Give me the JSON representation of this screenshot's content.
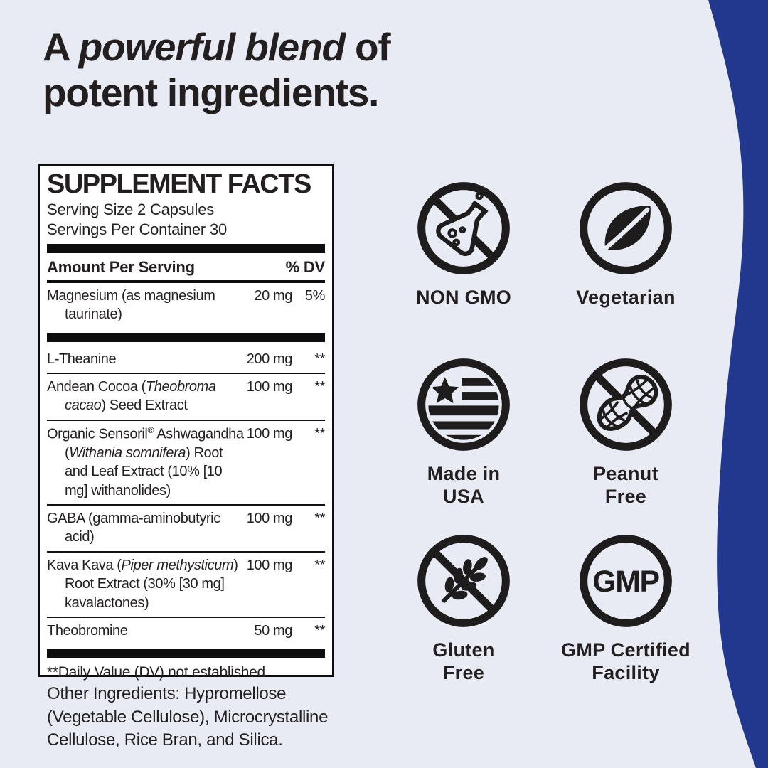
{
  "colors": {
    "background": "#e9ebf4",
    "accent_blue": "#21388e",
    "ink": "#231f20",
    "panel_bg": "#ffffff"
  },
  "headline": {
    "line1_prefix": "A ",
    "line1_emphasis": "powerful blend",
    "line1_suffix": " of",
    "line2": "potent ingredients."
  },
  "supplement_facts": {
    "title": "SUPPLEMENT FACTS",
    "serving_size": "Serving Size 2 Capsules",
    "servings_per_container": "Servings Per Container 30",
    "column_headers": {
      "amount": "Amount Per Serving",
      "dv": "% DV"
    },
    "rows": [
      {
        "name": [
          {
            "t": "Magnesium (as magnesium taurinate)"
          }
        ],
        "amount": "20 mg",
        "dv": "5%",
        "thick_after": true
      },
      {
        "name": [
          {
            "t": "L-Theanine"
          }
        ],
        "amount": "200 mg",
        "dv": "**"
      },
      {
        "name": [
          {
            "t": "Andean Cocoa ("
          },
          {
            "t": "Theobroma cacao",
            "i": true
          },
          {
            "t": ") Seed Extract"
          }
        ],
        "amount": "100 mg",
        "dv": "**"
      },
      {
        "name": [
          {
            "t": "Organic Sensoril"
          },
          {
            "t": "®",
            "sup": true
          },
          {
            "t": " Ashwagandha ("
          },
          {
            "t": "Withania somnifera",
            "i": true
          },
          {
            "t": ") Root and Leaf Extract (10% [10 mg] withanolides)"
          }
        ],
        "amount": "100 mg",
        "dv": "**"
      },
      {
        "name": [
          {
            "t": "GABA (gamma-aminobutyric acid)"
          }
        ],
        "amount": "100 mg",
        "dv": "**"
      },
      {
        "name": [
          {
            "t": "Kava Kava ("
          },
          {
            "t": "Piper methysticum",
            "i": true
          },
          {
            "t": ") Root Extract (30% [30 mg] kavalactones)"
          }
        ],
        "amount": "100 mg",
        "dv": "**"
      },
      {
        "name": [
          {
            "t": "Theobromine"
          }
        ],
        "amount": "50 mg",
        "dv": "**"
      }
    ],
    "footnote": "**Daily Value (DV) not established."
  },
  "other_ingredients": "Other Ingredients: Hypromellose (Vegetable Cellulose), Microcrystalline Cellulose, Rice Bran, and Silica.",
  "badges": [
    {
      "icon": "no-gmo-flask-icon",
      "label": "NON GMO"
    },
    {
      "icon": "vegetarian-leaf-icon",
      "label": "Vegetarian"
    },
    {
      "icon": "usa-flag-icon",
      "label": "Made in\nUSA"
    },
    {
      "icon": "no-peanut-icon",
      "label": "Peanut\nFree"
    },
    {
      "icon": "no-wheat-icon",
      "label": "Gluten\nFree"
    },
    {
      "icon": "gmp-circle-icon",
      "label": "GMP Certified\nFacility",
      "icon_text": "GMP"
    }
  ]
}
